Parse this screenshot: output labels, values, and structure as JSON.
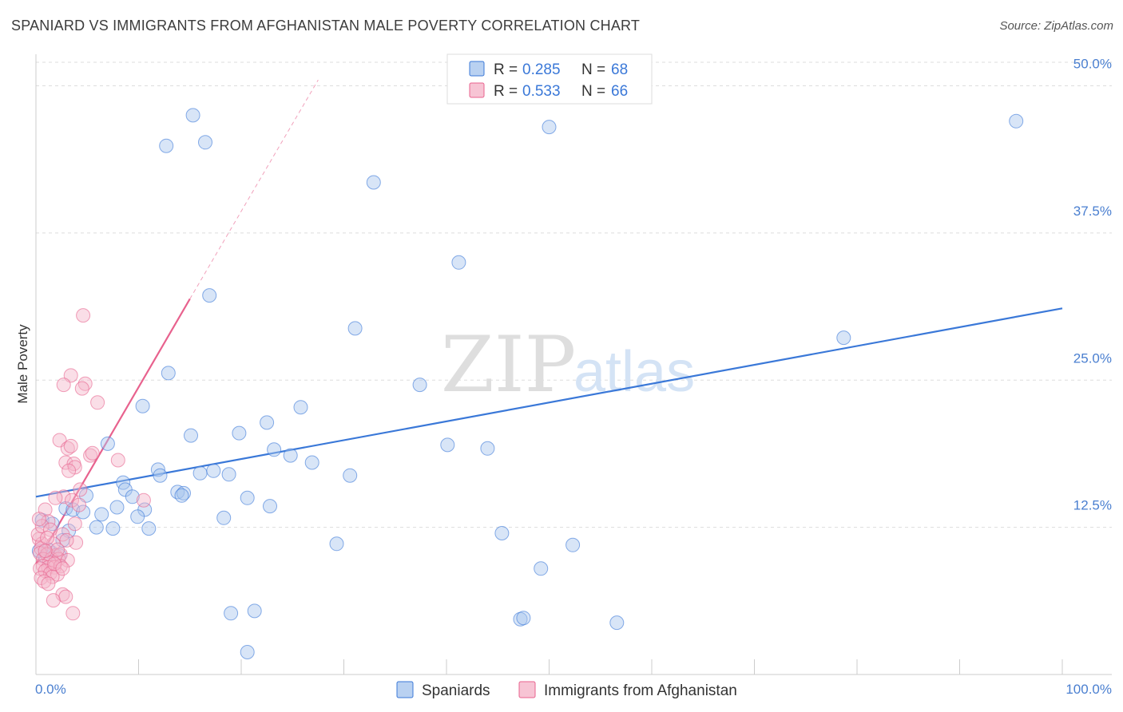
{
  "title": "SPANIARD VS IMMIGRANTS FROM AFGHANISTAN MALE POVERTY CORRELATION CHART",
  "source": "Source: ZipAtlas.com",
  "watermark": {
    "zip": "ZIP",
    "atlas": "atlas"
  },
  "colors": {
    "blue": "#3a78d8",
    "blue_fill": "#a8c6ee",
    "pink": "#e8628e",
    "pink_fill": "#f5b5c9",
    "grid": "#dddddd",
    "tick_text": "#4a7fd0"
  },
  "legend": {
    "series1": {
      "r_label": "R =",
      "r_value": "0.285",
      "n_label": "N =",
      "n_value": "68"
    },
    "series2": {
      "r_label": "R =",
      "r_value": "0.533",
      "n_label": "N =",
      "n_value": "66"
    }
  },
  "bottom_legend": [
    "Spaniards",
    "Immigrants from Afghanistan"
  ],
  "chart_data": {
    "type": "scatter",
    "title": "SPANIARD VS IMMIGRANTS FROM AFGHANISTAN MALE POVERTY CORRELATION CHART",
    "xlabel": "",
    "ylabel": "Male Poverty",
    "xlim": [
      0,
      100
    ],
    "ylim": [
      0,
      52
    ],
    "x_tick_labels": [
      "0.0%",
      "100.0%"
    ],
    "y_ticks": [
      12.5,
      25.0,
      37.5,
      50.0
    ],
    "y_tick_labels": [
      "12.5%",
      "25.0%",
      "37.5%",
      "50.0%"
    ],
    "grid": true,
    "series": [
      {
        "name": "Spaniards",
        "color": "#3a78d8",
        "trendline": {
          "x": [
            0,
            100
          ],
          "y": [
            15.1,
            31.1
          ],
          "style": "solid"
        },
        "points": [
          [
            15.3,
            47.5
          ],
          [
            16.5,
            45.2
          ],
          [
            12.7,
            44.9
          ],
          [
            50.0,
            46.5
          ],
          [
            95.5,
            47.0
          ],
          [
            32.9,
            41.8
          ],
          [
            41.2,
            35.0
          ],
          [
            16.9,
            32.2
          ],
          [
            31.1,
            29.4
          ],
          [
            78.7,
            28.6
          ],
          [
            12.9,
            25.6
          ],
          [
            37.4,
            24.6
          ],
          [
            10.4,
            22.8
          ],
          [
            25.8,
            22.7
          ],
          [
            15.1,
            20.3
          ],
          [
            19.8,
            20.5
          ],
          [
            22.5,
            21.4
          ],
          [
            40.1,
            19.5
          ],
          [
            44.0,
            19.2
          ],
          [
            7.0,
            19.6
          ],
          [
            23.2,
            19.1
          ],
          [
            24.8,
            18.6
          ],
          [
            26.9,
            18.0
          ],
          [
            11.9,
            17.4
          ],
          [
            16.0,
            17.1
          ],
          [
            17.3,
            17.3
          ],
          [
            18.8,
            17.0
          ],
          [
            30.6,
            16.9
          ],
          [
            12.1,
            16.9
          ],
          [
            8.5,
            16.3
          ],
          [
            8.7,
            15.7
          ],
          [
            13.8,
            15.5
          ],
          [
            14.4,
            15.4
          ],
          [
            14.2,
            15.2
          ],
          [
            4.9,
            15.2
          ],
          [
            9.4,
            15.1
          ],
          [
            20.6,
            15.0
          ],
          [
            2.9,
            14.1
          ],
          [
            3.6,
            14.0
          ],
          [
            7.9,
            14.2
          ],
          [
            10.6,
            14.0
          ],
          [
            22.8,
            14.3
          ],
          [
            4.6,
            13.8
          ],
          [
            6.4,
            13.6
          ],
          [
            9.9,
            13.4
          ],
          [
            18.3,
            13.3
          ],
          [
            0.6,
            13.1
          ],
          [
            5.9,
            12.5
          ],
          [
            7.5,
            12.4
          ],
          [
            11.0,
            12.4
          ],
          [
            3.2,
            12.2
          ],
          [
            1.6,
            12.8
          ],
          [
            45.4,
            12.0
          ],
          [
            2.6,
            11.4
          ],
          [
            29.3,
            11.1
          ],
          [
            52.3,
            11.0
          ],
          [
            0.3,
            10.5
          ],
          [
            0.9,
            10.0
          ],
          [
            1.6,
            10.3
          ],
          [
            49.2,
            9.0
          ],
          [
            19.0,
            5.2
          ],
          [
            21.3,
            5.4
          ],
          [
            47.2,
            4.7
          ],
          [
            47.5,
            4.8
          ],
          [
            56.6,
            4.4
          ],
          [
            20.6,
            1.9
          ],
          [
            1.2,
            10.6
          ],
          [
            2.3,
            10.1
          ]
        ]
      },
      {
        "name": "Immigrants from Afghanistan",
        "color": "#e8628e",
        "trendline": {
          "x": [
            0,
            15.0
          ],
          "y": [
            9.4,
            31.9
          ],
          "style": "solid",
          "extended_x": [
            15.0,
            27.5
          ],
          "extended_y": [
            31.9,
            50.5
          ]
        },
        "points": [
          [
            4.6,
            30.5
          ],
          [
            4.8,
            24.7
          ],
          [
            4.5,
            24.3
          ],
          [
            3.4,
            25.4
          ],
          [
            2.7,
            24.6
          ],
          [
            6.0,
            23.1
          ],
          [
            2.3,
            19.9
          ],
          [
            3.1,
            19.2
          ],
          [
            3.4,
            19.4
          ],
          [
            5.3,
            18.6
          ],
          [
            5.5,
            18.8
          ],
          [
            8.0,
            18.2
          ],
          [
            2.9,
            18.0
          ],
          [
            3.7,
            17.9
          ],
          [
            3.8,
            17.6
          ],
          [
            3.2,
            17.3
          ],
          [
            4.3,
            15.7
          ],
          [
            2.7,
            15.1
          ],
          [
            1.9,
            15.0
          ],
          [
            3.5,
            14.8
          ],
          [
            10.5,
            14.8
          ],
          [
            4.2,
            14.4
          ],
          [
            0.9,
            14.0
          ],
          [
            1.2,
            13.0
          ],
          [
            3.8,
            12.8
          ],
          [
            2.6,
            11.9
          ],
          [
            0.3,
            11.5
          ],
          [
            0.6,
            11.1
          ],
          [
            1.7,
            11.1
          ],
          [
            0.5,
            10.7
          ],
          [
            0.4,
            10.3
          ],
          [
            1.1,
            10.2
          ],
          [
            1.9,
            10.1
          ],
          [
            2.4,
            10.2
          ],
          [
            0.7,
            9.8
          ],
          [
            1.5,
            9.8
          ],
          [
            2.2,
            9.8
          ],
          [
            3.1,
            9.7
          ],
          [
            1.3,
            9.5
          ],
          [
            0.7,
            9.2
          ],
          [
            1.2,
            9.1
          ],
          [
            1.8,
            9.1
          ],
          [
            2.4,
            9.2
          ],
          [
            3.9,
            11.2
          ],
          [
            0.4,
            9.0
          ],
          [
            0.9,
            8.8
          ],
          [
            1.4,
            8.6
          ],
          [
            2.1,
            8.5
          ],
          [
            0.5,
            8.2
          ],
          [
            1.6,
            8.3
          ],
          [
            0.8,
            7.9
          ],
          [
            1.2,
            7.7
          ],
          [
            2.6,
            6.8
          ],
          [
            2.9,
            6.6
          ],
          [
            1.7,
            6.3
          ],
          [
            3.6,
            5.2
          ],
          [
            0.2,
            11.9
          ],
          [
            0.6,
            12.6
          ],
          [
            1.4,
            12.3
          ],
          [
            0.3,
            13.2
          ],
          [
            2.1,
            10.6
          ],
          [
            1.1,
            11.6
          ],
          [
            3.0,
            11.4
          ],
          [
            0.9,
            10.5
          ],
          [
            1.8,
            9.4
          ],
          [
            2.6,
            9.0
          ]
        ]
      }
    ]
  }
}
